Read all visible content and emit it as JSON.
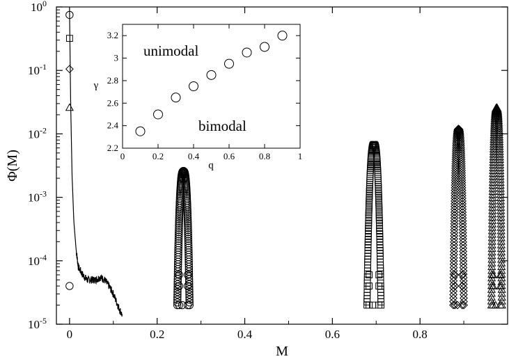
{
  "chart_data": [
    {
      "type": "scatter",
      "xlabel": "M",
      "ylabel": "Φ(M)",
      "xlim": [
        -0.03,
        1.0
      ],
      "ylim": [
        1e-05,
        1
      ],
      "y_scale": "log",
      "x_ticks": [
        0,
        0.2,
        0.4,
        0.6,
        0.8
      ],
      "x_tick_labels": [
        "0",
        "0.2",
        "0.4",
        "0.6",
        "0.8"
      ],
      "y_ticks": [
        1e-05,
        0.0001,
        0.001,
        0.01,
        0.1,
        1
      ],
      "y_tick_labels": [
        {
          "base": "10",
          "exp": "-5"
        },
        {
          "base": "10",
          "exp": "-4"
        },
        {
          "base": "10",
          "exp": "-3"
        },
        {
          "base": "10",
          "exp": "-2"
        },
        {
          "base": "10",
          "exp": "-1"
        },
        {
          "base": "10",
          "exp": "0"
        }
      ],
      "grid": false,
      "legend": "none",
      "series": [
        {
          "marker": "circle",
          "x": [
            0.0,
            0.0
          ],
          "y": [
            0.75,
            4e-05
          ],
          "peak": {
            "center": 0.26,
            "halfwidth": 0.014,
            "ymax": 0.0026,
            "ymin": 2e-05
          }
        },
        {
          "marker": "square",
          "x": [
            0.0
          ],
          "y": [
            0.32
          ],
          "peak": {
            "center": 0.695,
            "halfwidth": 0.016,
            "ymax": 0.0068,
            "ymin": 2e-05
          }
        },
        {
          "marker": "diamond",
          "x": [
            0.0
          ],
          "y": [
            0.105
          ],
          "peak": {
            "center": 0.888,
            "halfwidth": 0.012,
            "ymax": 0.012,
            "ymin": 2e-05
          }
        },
        {
          "marker": "triangle",
          "x": [
            0.0
          ],
          "y": [
            0.026
          ],
          "peak": {
            "center": 0.975,
            "halfwidth": 0.012,
            "ymax": 0.026,
            "ymin": 2e-05
          }
        }
      ],
      "line": {
        "description_points_x": [
          0.0,
          0.003,
          0.006,
          0.01,
          0.015,
          0.02,
          0.03,
          0.04,
          0.05,
          0.06,
          0.07,
          0.08,
          0.09,
          0.1,
          0.11,
          0.12
        ],
        "description_points_y": [
          0.8,
          0.02,
          0.002,
          0.0004,
          0.00015,
          8e-05,
          6e-05,
          5e-05,
          5e-05,
          5e-05,
          5.5e-05,
          5e-05,
          4e-05,
          3e-05,
          2e-05,
          1.4e-05
        ]
      }
    },
    {
      "type": "scatter",
      "inset": true,
      "xlabel": "q",
      "ylabel": "γ",
      "xlim": [
        0,
        1
      ],
      "ylim": [
        2.2,
        3.3
      ],
      "x_ticks": [
        0,
        0.2,
        0.4,
        0.6,
        0.8,
        1
      ],
      "x_tick_labels": [
        "0",
        "0.2",
        "0.4",
        "0.6",
        "0.8",
        "1"
      ],
      "y_ticks": [
        2.2,
        2.4,
        2.6,
        2.8,
        3.0,
        3.2
      ],
      "y_tick_labels": [
        "2.2",
        "2.4",
        "2.6",
        "2.8",
        "3",
        "3.2"
      ],
      "x": [
        0.1,
        0.2,
        0.3,
        0.4,
        0.5,
        0.6,
        0.7,
        0.8,
        0.9
      ],
      "y": [
        2.35,
        2.5,
        2.65,
        2.75,
        2.85,
        2.95,
        3.05,
        3.1,
        3.2
      ],
      "annotations": [
        "unimodal",
        "bimodal"
      ]
    }
  ]
}
